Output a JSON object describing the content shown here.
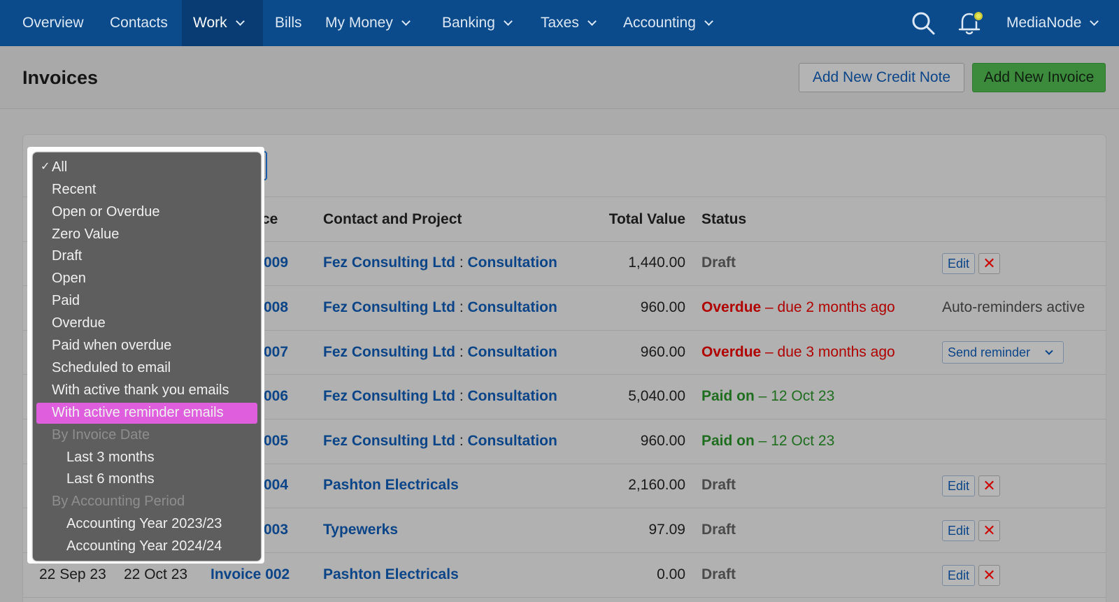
{
  "nav": {
    "items": [
      {
        "label": "Overview"
      },
      {
        "label": "Contacts"
      },
      {
        "label": "Work"
      },
      {
        "label": "Bills"
      },
      {
        "label": "My Money"
      },
      {
        "label": "Banking"
      },
      {
        "label": "Taxes"
      },
      {
        "label": "Accounting"
      }
    ],
    "account": "MediaNode"
  },
  "page": {
    "title": "Invoices",
    "add_credit_note": "Add New Credit Note",
    "add_invoice": "Add New Invoice"
  },
  "table": {
    "headers": {
      "invoice_partial": "ce",
      "contact": "Contact and Project",
      "total": "Total Value",
      "status": "Status"
    },
    "rows": [
      {
        "invoice": "009",
        "client": "Fez Consulting Ltd",
        "sep": " : ",
        "project": "Consultation",
        "value": "1,440.00",
        "status": "Draft",
        "status_sub": ""
      },
      {
        "invoice": "008",
        "client": "Fez Consulting Ltd",
        "sep": " : ",
        "project": "Consultation",
        "value": "960.00",
        "status": "Overdue",
        "status_sub": " – due 2 months ago",
        "action_text": "Auto-reminders active"
      },
      {
        "invoice": "007",
        "client": "Fez Consulting Ltd",
        "sep": " : ",
        "project": "Consultation",
        "value": "960.00",
        "status": "Overdue",
        "status_sub": " – due 3 months ago",
        "action_text": "Send reminder"
      },
      {
        "invoice": "006",
        "client": "Fez Consulting Ltd",
        "sep": " : ",
        "project": "Consultation",
        "value": "5,040.00",
        "status": "Paid on",
        "status_sub": " – 12 Oct 23"
      },
      {
        "invoice": "005",
        "client": "Fez Consulting Ltd",
        "sep": " : ",
        "project": "Consultation",
        "value": "960.00",
        "status": "Paid on",
        "status_sub": " – 12 Oct 23"
      },
      {
        "invoice": "004",
        "client": "Pashton Electricals",
        "value": "2,160.00",
        "status": "Draft"
      },
      {
        "invoice": "003",
        "client": "Typewerks",
        "value": "97.09",
        "status": "Draft"
      },
      {
        "date": "22 Sep 23",
        "due": "22 Oct 23",
        "invoice": "Invoice 002",
        "client": "Pashton Electricals",
        "value": "0.00",
        "status": "Draft"
      }
    ],
    "edit_label": "Edit",
    "delete_label": "✕"
  },
  "filter_dropdown": {
    "check": "✓",
    "options": [
      {
        "label": "All",
        "selected": true
      },
      {
        "label": "Recent"
      },
      {
        "label": "Open or Overdue"
      },
      {
        "label": "Zero Value"
      },
      {
        "label": "Draft"
      },
      {
        "label": "Open"
      },
      {
        "label": "Paid"
      },
      {
        "label": "Overdue"
      },
      {
        "label": "Paid when overdue"
      },
      {
        "label": "Scheduled to email"
      },
      {
        "label": "With active thank you emails"
      },
      {
        "label": "With active reminder emails",
        "highlighted": true
      },
      {
        "label": "By Invoice Date",
        "group": true
      },
      {
        "label": "Last 3 months"
      },
      {
        "label": "Last 6 months"
      },
      {
        "label": "By Accounting Period",
        "group": true
      },
      {
        "label": "Accounting Year 2023/23"
      },
      {
        "label": "Accounting Year 2024/24"
      }
    ]
  },
  "colors": {
    "nav_bg": "#0b4a8b",
    "link": "#0b4588",
    "overdue": "#b00000",
    "paid": "#1f6e1f",
    "highlight": "#df5edd",
    "primary_button": "#3c8a3c"
  }
}
